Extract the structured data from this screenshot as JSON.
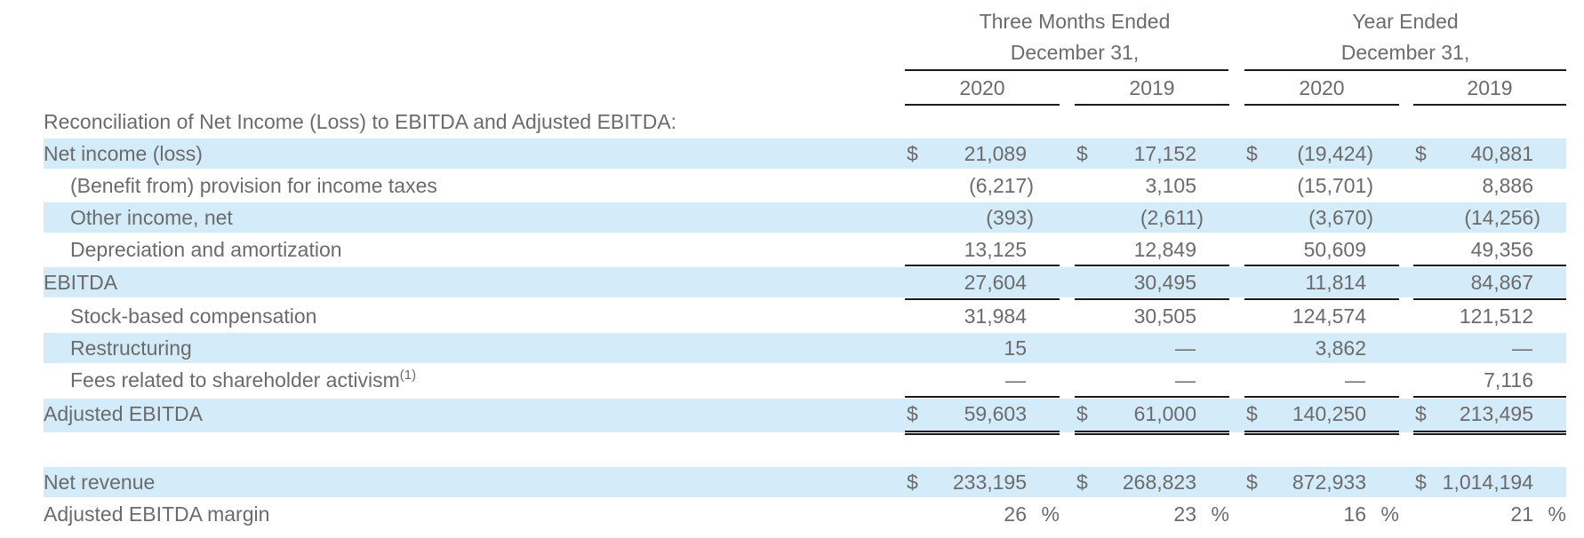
{
  "header": {
    "group1_line1": "Three Months Ended",
    "group1_line2": "December 31,",
    "group2_line1": "Year Ended",
    "group2_line2": "December 31,",
    "years": [
      "2020",
      "2019",
      "2020",
      "2019"
    ]
  },
  "table": {
    "section_title": "Reconciliation of Net Income (Loss) to EBITDA and Adjusted EBITDA:",
    "currency_symbol": "$",
    "percent_symbol": "%",
    "footnote_marker": "(1)",
    "rows": [
      {
        "label": "Net income (loss)",
        "values": [
          "21,089",
          "17,152",
          "(19,424)",
          "40,881"
        ]
      },
      {
        "label": "(Benefit from) provision for income taxes",
        "values": [
          "(6,217)",
          "3,105",
          "(15,701)",
          "8,886"
        ]
      },
      {
        "label": "Other income, net",
        "values": [
          "(393)",
          "(2,611)",
          "(3,670)",
          "(14,256)"
        ]
      },
      {
        "label": "Depreciation and amortization",
        "values": [
          "13,125",
          "12,849",
          "50,609",
          "49,356"
        ]
      },
      {
        "label": "EBITDA",
        "values": [
          "27,604",
          "30,495",
          "11,814",
          "84,867"
        ]
      },
      {
        "label": "Stock-based compensation",
        "values": [
          "31,984",
          "30,505",
          "124,574",
          "121,512"
        ]
      },
      {
        "label": "Restructuring",
        "values": [
          "15",
          "—",
          "3,862",
          "—"
        ]
      },
      {
        "label": "Fees related to shareholder activism",
        "values": [
          "—",
          "—",
          "—",
          "7,116"
        ]
      },
      {
        "label": "Adjusted EBITDA",
        "values": [
          "59,603",
          "61,000",
          "140,250",
          "213,495"
        ]
      },
      {
        "label": "Net revenue",
        "values": [
          "233,195",
          "268,823",
          "872,933",
          "1,014,194"
        ]
      },
      {
        "label": "Adjusted EBITDA margin",
        "values": [
          "26",
          "23",
          "16",
          "21"
        ]
      }
    ]
  }
}
